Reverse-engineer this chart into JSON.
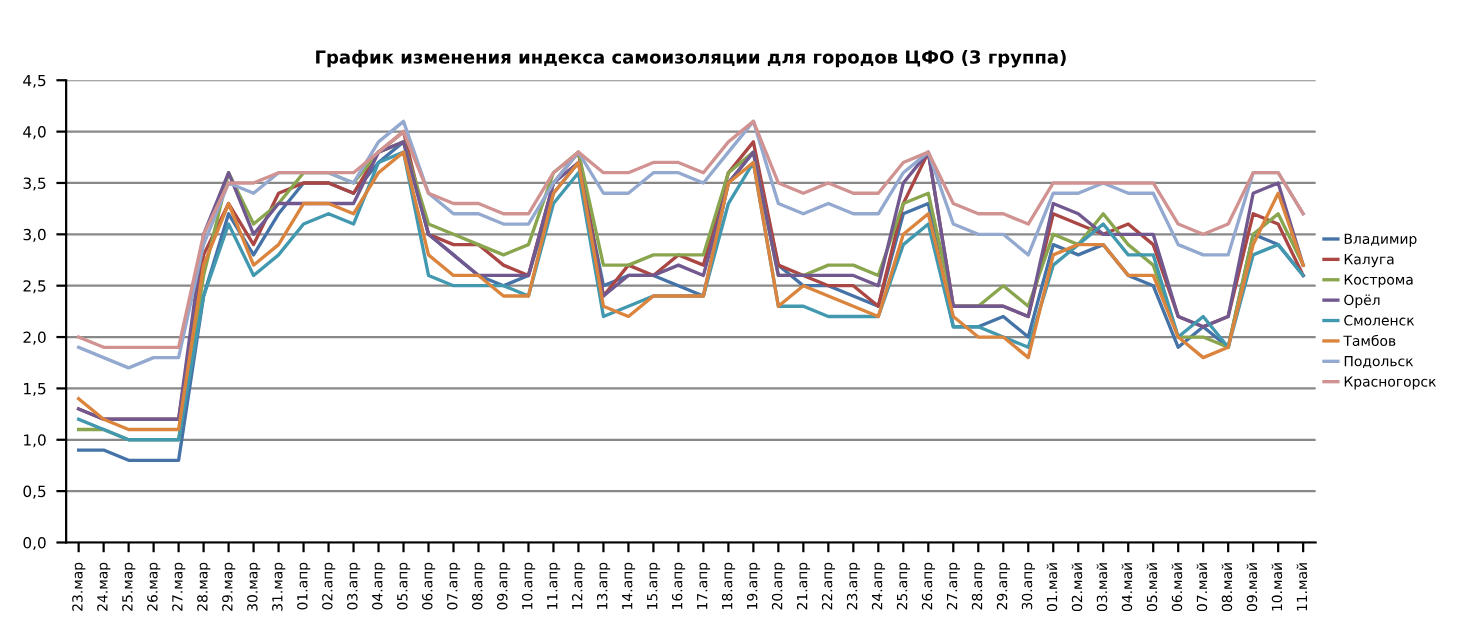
{
  "chart_data": {
    "type": "line",
    "title": "График изменения индекса самоизоляции для городов ЦФО (3 группа)",
    "categories": [
      "23.мар",
      "24.мар",
      "25.мар",
      "26.мар",
      "27.мар",
      "28.мар",
      "29.мар",
      "30.мар",
      "31.мар",
      "01.апр",
      "02.апр",
      "03.апр",
      "04.апр",
      "05.апр",
      "06.апр",
      "07.апр",
      "08.апр",
      "09.апр",
      "10.апр",
      "11.апр",
      "12.апр",
      "13.апр",
      "14.апр",
      "15.апр",
      "16.апр",
      "17.апр",
      "18.апр",
      "19.апр",
      "20.апр",
      "21.апр",
      "22.апр",
      "23.апр",
      "24.апр",
      "25.апр",
      "26.апр",
      "27.апр",
      "28.апр",
      "29.апр",
      "30.апр",
      "01.май",
      "02.май",
      "03.май",
      "04.май",
      "05.май",
      "06.май",
      "07.май",
      "08.май",
      "09.май",
      "10.май",
      "11.май"
    ],
    "series": [
      {
        "name": "Владимир",
        "color": "#4572a7",
        "values": [
          0.9,
          0.9,
          0.8,
          0.8,
          0.8,
          2.4,
          3.2,
          2.8,
          3.2,
          3.5,
          3.5,
          3.4,
          3.7,
          3.9,
          3.0,
          2.8,
          2.6,
          2.5,
          2.6,
          3.4,
          3.7,
          2.5,
          2.6,
          2.6,
          2.5,
          2.4,
          3.5,
          3.8,
          2.7,
          2.5,
          2.5,
          2.4,
          2.3,
          3.2,
          3.3,
          2.1,
          2.1,
          2.2,
          2.0,
          2.9,
          2.8,
          2.9,
          2.6,
          2.5,
          1.9,
          2.1,
          1.9,
          3.0,
          2.9,
          2.6
        ]
      },
      {
        "name": "Калуга",
        "color": "#aa4643",
        "values": [
          1.3,
          1.2,
          1.2,
          1.2,
          1.2,
          2.8,
          3.3,
          2.9,
          3.4,
          3.5,
          3.5,
          3.4,
          3.8,
          4.0,
          3.0,
          2.9,
          2.9,
          2.7,
          2.6,
          3.5,
          3.8,
          2.4,
          2.7,
          2.6,
          2.8,
          2.7,
          3.6,
          3.9,
          2.7,
          2.6,
          2.5,
          2.5,
          2.3,
          3.3,
          3.8,
          2.3,
          2.3,
          2.3,
          2.2,
          3.2,
          3.1,
          3.0,
          3.1,
          2.9,
          2.2,
          2.1,
          2.2,
          3.2,
          3.1,
          2.6
        ]
      },
      {
        "name": "Кострома",
        "color": "#89a54e",
        "values": [
          1.1,
          1.1,
          1.0,
          1.0,
          1.0,
          2.6,
          3.6,
          3.1,
          3.3,
          3.6,
          3.6,
          3.5,
          3.8,
          3.9,
          3.1,
          3.0,
          2.9,
          2.8,
          2.9,
          3.6,
          3.8,
          2.7,
          2.7,
          2.8,
          2.8,
          2.8,
          3.6,
          3.8,
          2.6,
          2.6,
          2.7,
          2.7,
          2.6,
          3.3,
          3.4,
          2.3,
          2.3,
          2.5,
          2.3,
          3.0,
          2.9,
          3.2,
          2.9,
          2.7,
          2.0,
          2.0,
          1.9,
          3.0,
          3.2,
          2.7
        ]
      },
      {
        "name": "Орёл",
        "color": "#71588f",
        "values": [
          1.3,
          1.2,
          1.2,
          1.2,
          1.2,
          3.0,
          3.6,
          3.0,
          3.3,
          3.3,
          3.3,
          3.3,
          3.8,
          3.9,
          3.0,
          2.8,
          2.6,
          2.6,
          2.6,
          3.5,
          3.7,
          2.4,
          2.6,
          2.6,
          2.7,
          2.6,
          3.5,
          3.8,
          2.6,
          2.6,
          2.6,
          2.6,
          2.5,
          3.5,
          3.8,
          2.3,
          2.3,
          2.3,
          2.2,
          3.3,
          3.2,
          3.0,
          3.0,
          3.0,
          2.2,
          2.1,
          2.2,
          3.4,
          3.5,
          2.7
        ]
      },
      {
        "name": "Смоленск",
        "color": "#4198af",
        "values": [
          1.2,
          1.1,
          1.0,
          1.0,
          1.0,
          2.4,
          3.1,
          2.6,
          2.8,
          3.1,
          3.2,
          3.1,
          3.7,
          3.8,
          2.6,
          2.5,
          2.5,
          2.5,
          2.4,
          3.3,
          3.6,
          2.2,
          2.3,
          2.4,
          2.4,
          2.4,
          3.3,
          3.7,
          2.3,
          2.3,
          2.2,
          2.2,
          2.2,
          2.9,
          3.1,
          2.1,
          2.1,
          2.0,
          1.9,
          2.7,
          2.9,
          3.1,
          2.8,
          2.8,
          2.0,
          2.2,
          1.9,
          2.8,
          2.9,
          2.6
        ]
      },
      {
        "name": "Тамбов",
        "color": "#db843d",
        "values": [
          1.4,
          1.2,
          1.1,
          1.1,
          1.1,
          2.7,
          3.3,
          2.7,
          2.9,
          3.3,
          3.3,
          3.2,
          3.6,
          3.8,
          2.8,
          2.6,
          2.6,
          2.4,
          2.4,
          3.4,
          3.7,
          2.3,
          2.2,
          2.4,
          2.4,
          2.4,
          3.5,
          3.7,
          2.3,
          2.5,
          2.4,
          2.3,
          2.2,
          3.0,
          3.2,
          2.2,
          2.0,
          2.0,
          1.8,
          2.8,
          2.9,
          2.9,
          2.6,
          2.6,
          2.0,
          1.8,
          1.9,
          2.9,
          3.4,
          2.7
        ]
      },
      {
        "name": "Подольск",
        "color": "#93a9cf",
        "values": [
          1.9,
          1.8,
          1.7,
          1.8,
          1.8,
          2.9,
          3.5,
          3.4,
          3.6,
          3.6,
          3.6,
          3.5,
          3.9,
          4.1,
          3.4,
          3.2,
          3.2,
          3.1,
          3.1,
          3.5,
          3.8,
          3.4,
          3.4,
          3.6,
          3.6,
          3.5,
          3.8,
          4.1,
          3.3,
          3.2,
          3.3,
          3.2,
          3.2,
          3.6,
          3.8,
          3.1,
          3.0,
          3.0,
          2.8,
          3.4,
          3.4,
          3.5,
          3.4,
          3.4,
          2.9,
          2.8,
          2.8,
          3.6,
          3.6,
          3.2
        ]
      },
      {
        "name": "Красногорск",
        "color": "#d19392",
        "values": [
          2.0,
          1.9,
          1.9,
          1.9,
          1.9,
          3.0,
          3.5,
          3.5,
          3.6,
          3.6,
          3.6,
          3.6,
          3.8,
          4.0,
          3.4,
          3.3,
          3.3,
          3.2,
          3.2,
          3.6,
          3.8,
          3.6,
          3.6,
          3.7,
          3.7,
          3.6,
          3.9,
          4.1,
          3.5,
          3.4,
          3.5,
          3.4,
          3.4,
          3.7,
          3.8,
          3.3,
          3.2,
          3.2,
          3.1,
          3.5,
          3.5,
          3.5,
          3.5,
          3.5,
          3.1,
          3.0,
          3.1,
          3.6,
          3.6,
          3.2
        ]
      }
    ],
    "ylim": [
      0,
      4.5
    ],
    "yticks": [
      {
        "value": 0,
        "label": "0,0"
      },
      {
        "value": 0.5,
        "label": "0,5"
      },
      {
        "value": 1,
        "label": "1,0"
      },
      {
        "value": 1.5,
        "label": "1,5"
      },
      {
        "value": 2,
        "label": "2,0"
      },
      {
        "value": 2.5,
        "label": "2,5"
      },
      {
        "value": 3,
        "label": "3,0"
      },
      {
        "value": 3.5,
        "label": "3,5"
      },
      {
        "value": 4,
        "label": "4,0"
      },
      {
        "value": 4.5,
        "label": "4,5"
      }
    ],
    "grid": "y",
    "legend": "right",
    "marker": "none",
    "line_style": "solid"
  }
}
